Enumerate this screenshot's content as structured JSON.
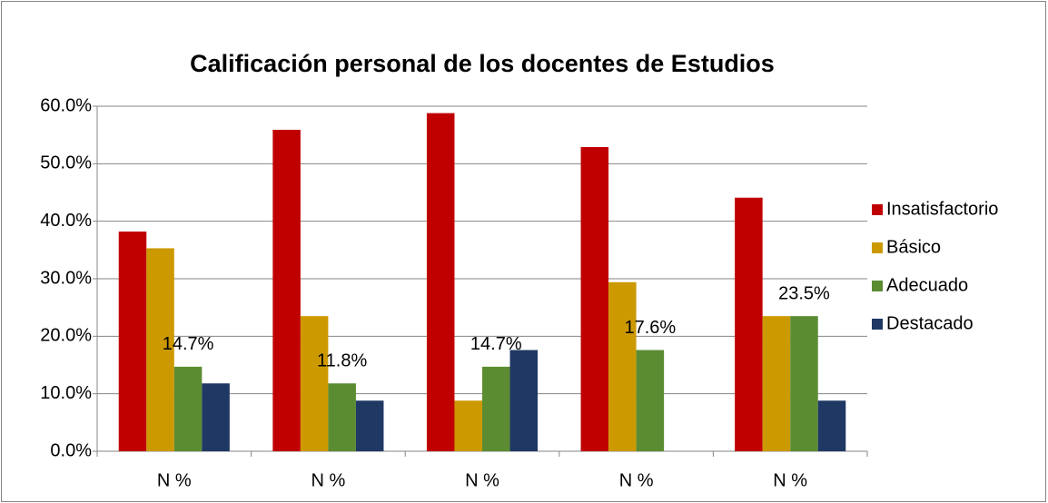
{
  "chart_data": {
    "type": "bar",
    "title": "Calificación personal de los docentes de Estudios",
    "categories": [
      "N %",
      "N %",
      "N %",
      "N %",
      "N %"
    ],
    "series": [
      {
        "name": "Insatisfactorio",
        "color": "#c00000",
        "values": [
          38.2,
          55.9,
          58.8,
          52.9,
          44.1
        ]
      },
      {
        "name": "Básico",
        "color": "#cc9900",
        "values": [
          35.3,
          23.5,
          8.8,
          29.4,
          23.5
        ]
      },
      {
        "name": "Adecuado",
        "color": "#5b8c32",
        "values": [
          14.7,
          11.8,
          14.7,
          17.6,
          23.5
        ],
        "value_labels": [
          "14.7%",
          "11.8%",
          "14.7%",
          "17.6%",
          "23.5%"
        ]
      },
      {
        "name": "Destacado",
        "color": "#1f3864",
        "values": [
          11.8,
          8.8,
          17.6,
          0,
          8.8
        ]
      }
    ],
    "ylim": [
      0,
      60
    ],
    "yticks": [
      {
        "value": 0,
        "label": "0.0%"
      },
      {
        "value": 10,
        "label": "10.0%"
      },
      {
        "value": 20,
        "label": "20.0%"
      },
      {
        "value": 30,
        "label": "30.0%"
      },
      {
        "value": 40,
        "label": "40.0%"
      },
      {
        "value": 50,
        "label": "50.0%"
      },
      {
        "value": 60,
        "label": "60.0%"
      }
    ],
    "grid": true,
    "legend": "right"
  }
}
